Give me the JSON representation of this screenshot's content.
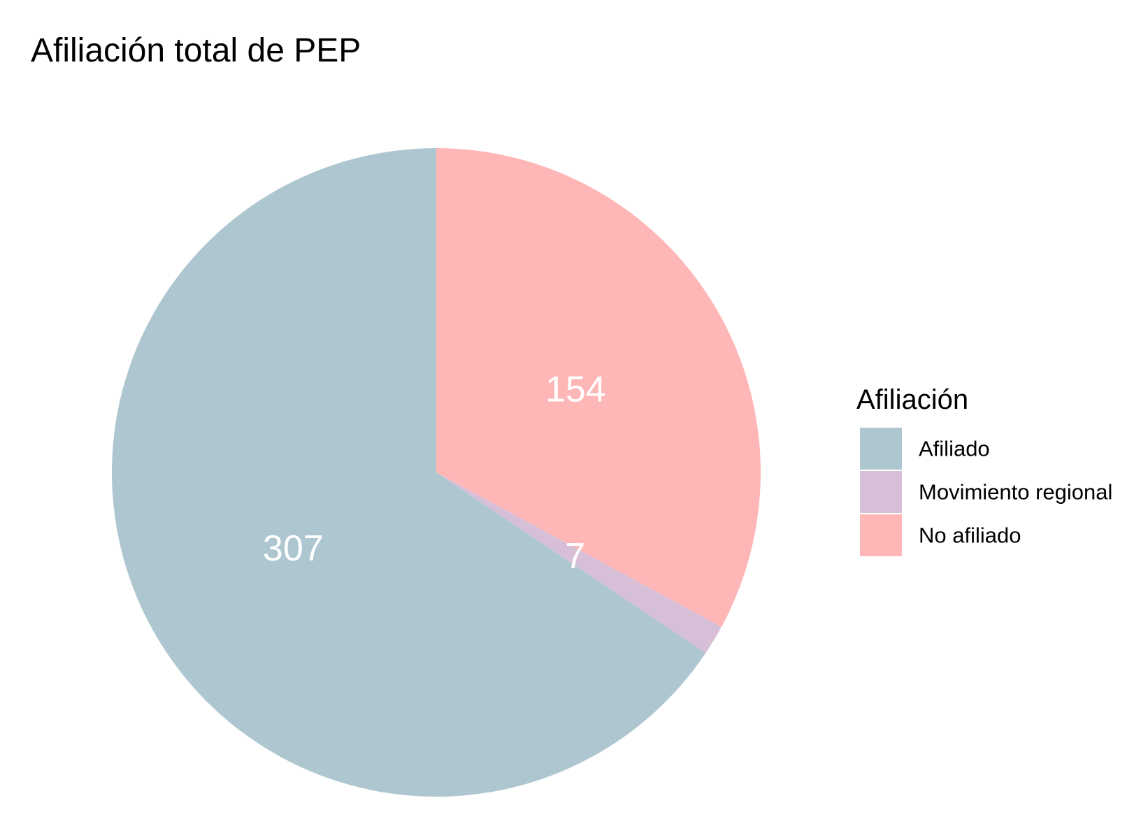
{
  "chart_data": {
    "type": "pie",
    "title": "Afiliación total de PEP",
    "categories": [
      "Afiliado",
      "Movimiento regional",
      "No afiliado"
    ],
    "values": [
      307,
      7,
      154
    ],
    "labels": [
      "307",
      "7",
      "154"
    ],
    "colors": [
      "#aec6cf",
      "#d8bfd8",
      "#ffb6b6"
    ],
    "legend": {
      "title": "Afiliación",
      "placement": "right"
    }
  }
}
